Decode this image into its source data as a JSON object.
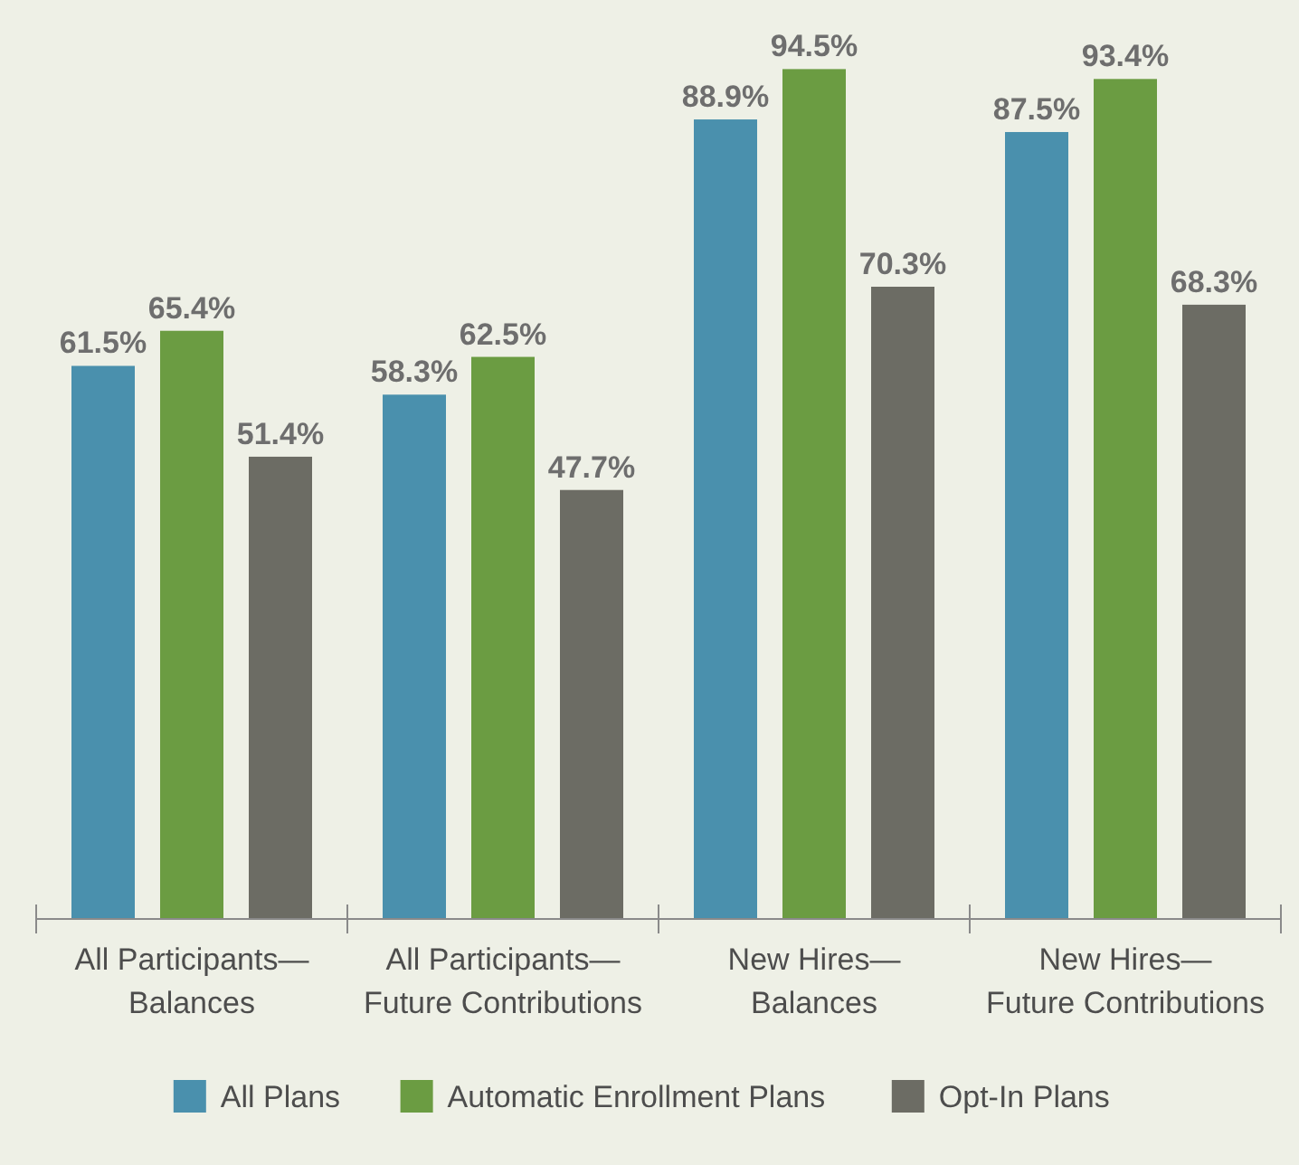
{
  "chart_data": {
    "type": "bar",
    "categories": [
      "All Participants—\nBalances",
      "All Participants—\nFuture Contributions",
      "New Hires—\nBalances",
      "New Hires—\nFuture Contributions"
    ],
    "series": [
      {
        "name": "All Plans",
        "color": "#4a90ad",
        "values": [
          61.5,
          58.3,
          88.9,
          87.5
        ],
        "value_labels": [
          "61.5%",
          "58.3%",
          "88.9%",
          "87.5%"
        ]
      },
      {
        "name": "Automatic Enrollment Plans",
        "color": "#6b9c42",
        "values": [
          65.4,
          62.5,
          94.5,
          93.4
        ],
        "value_labels": [
          "65.4%",
          "62.5%",
          "94.5%",
          "93.4%"
        ]
      },
      {
        "name": "Opt-In Plans",
        "color": "#6c6c64",
        "values": [
          51.4,
          47.7,
          70.3,
          68.3
        ],
        "value_labels": [
          "51.4%",
          "47.7%",
          "70.3%",
          "68.3%"
        ]
      }
    ],
    "legend": "bottom"
  }
}
